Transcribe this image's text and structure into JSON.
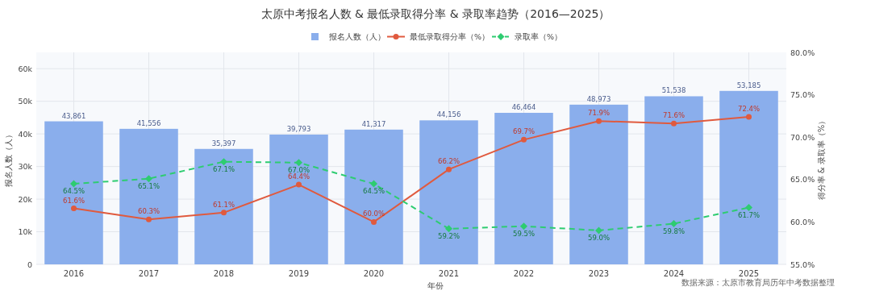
{
  "chart_data": {
    "type": "bar",
    "title": "太原中考报名人数 & 最低录取得分率 & 录取率趋势（2016—2025）",
    "xlabel": "年份",
    "ylabel": "报名人数（人）",
    "y2label": "得分率 & 录取率（%）",
    "categories": [
      "2016",
      "2017",
      "2018",
      "2019",
      "2020",
      "2021",
      "2022",
      "2023",
      "2024",
      "2025"
    ],
    "series": [
      {
        "name": "报名人数（人）",
        "color": "#8aaeec",
        "values": [
          43861,
          41556,
          35397,
          39793,
          41317,
          44156,
          46464,
          48973,
          51538,
          53185
        ],
        "value_labels": [
          "43,861",
          "41,556",
          "35,397",
          "39,793",
          "41,317",
          "44,156",
          "46,464",
          "48,973",
          "51,538",
          "53,185"
        ]
      },
      {
        "name": "最低录取得分率（%）",
        "type": "line",
        "axis": "y2",
        "color": "#e05a3e",
        "marker": "circle",
        "line_style": "solid",
        "values": [
          61.6,
          60.3,
          61.1,
          64.4,
          60.0,
          66.2,
          69.7,
          71.9,
          71.6,
          72.4
        ],
        "value_labels": [
          "61.6%",
          "60.3%",
          "61.1%",
          "64.4%",
          "60.0%",
          "66.2%",
          "69.7%",
          "71.9%",
          "71.6%",
          "72.4%"
        ]
      },
      {
        "name": "录取率（%）",
        "type": "line",
        "axis": "y2",
        "color": "#2ecc71",
        "marker": "diamond",
        "line_style": "dashed",
        "values": [
          64.5,
          65.1,
          67.1,
          67.0,
          64.5,
          59.2,
          59.5,
          59.0,
          59.8,
          61.7
        ],
        "value_labels": [
          "64.5%",
          "65.1%",
          "67.1%",
          "67.0%",
          "64.5%",
          "59.2%",
          "59.5%",
          "59.0%",
          "59.8%",
          "61.7%"
        ]
      }
    ],
    "ylim": [
      0,
      65000
    ],
    "yticks": [
      0,
      {
        "value": 10000,
        "label": "10k"
      },
      {
        "value": 20000,
        "label": "20k"
      },
      {
        "value": 30000,
        "label": "30k"
      },
      {
        "value": 40000,
        "label": "40k"
      },
      {
        "value": 50000,
        "label": "50k"
      },
      {
        "value": 60000,
        "label": "60k"
      }
    ],
    "y2lim": [
      55,
      80
    ],
    "y2ticks": [
      {
        "value": 55,
        "label": "55.0%"
      },
      {
        "value": 60,
        "label": "60.0%"
      },
      {
        "value": 65,
        "label": "65.0%"
      },
      {
        "value": 70,
        "label": "70.0%"
      },
      {
        "value": 75,
        "label": "75.0%"
      },
      {
        "value": 80,
        "label": "80.0%"
      }
    ],
    "grid": true,
    "legend": "top",
    "annotations": [
      "数据来源：太原市教育局历年中考数据整理"
    ]
  }
}
